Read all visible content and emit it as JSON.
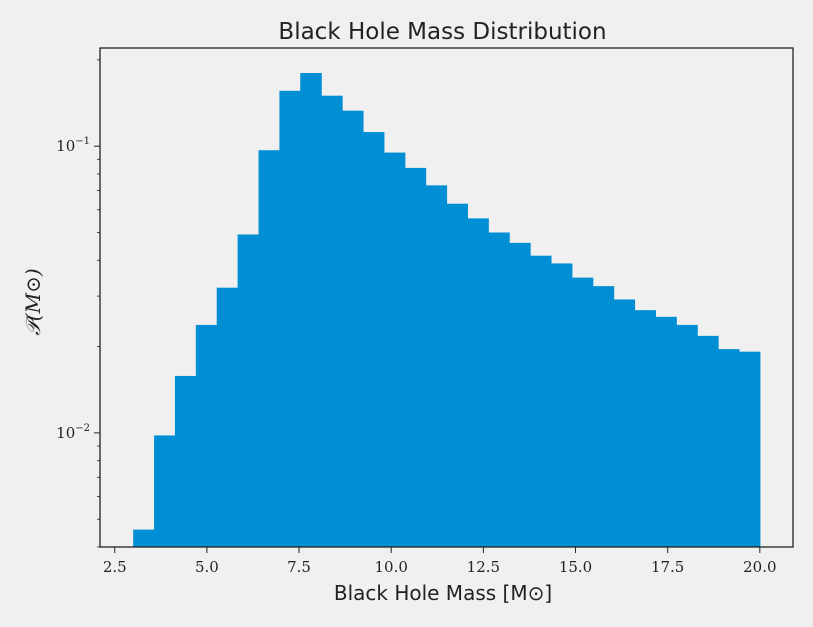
{
  "chart_data": {
    "type": "bar",
    "title": "Black Hole Mass Distribution",
    "xlabel": "Black Hole Mass [M⊙]",
    "ylabel": "𝒫(M⊙)",
    "xlim": [
      2.1,
      20.9
    ],
    "ylim": [
      0.004,
      0.22
    ],
    "yscale": "log",
    "grid": false,
    "legend": "none",
    "bar_color": "#008fd5",
    "x_ticks": [
      2.5,
      5.0,
      7.5,
      10.0,
      12.5,
      15.0,
      17.5,
      20.0
    ],
    "x_tick_labels": [
      "2.5",
      "5.0",
      "7.5",
      "10.0",
      "12.5",
      "15.0",
      "17.5",
      "20.0"
    ],
    "y_ticks": [
      {
        "value": 0.01,
        "base": "10",
        "exponent": "−2"
      },
      {
        "value": 0.1,
        "base": "10",
        "exponent": "−1"
      }
    ],
    "bin_edges": [
      3.0,
      3.567,
      4.133,
      4.7,
      5.267,
      5.833,
      6.4,
      6.967,
      7.533,
      8.1,
      8.667,
      9.233,
      9.8,
      10.367,
      10.933,
      11.5,
      12.067,
      12.633,
      13.2,
      13.767,
      14.333,
      14.9,
      15.467,
      16.033,
      16.6,
      17.167,
      17.733,
      18.3,
      18.867,
      19.433,
      20.0
    ],
    "values": [
      0.0046,
      0.0098,
      0.0158,
      0.0238,
      0.0321,
      0.0492,
      0.0968,
      0.156,
      0.18,
      0.15,
      0.133,
      0.112,
      0.095,
      0.084,
      0.073,
      0.063,
      0.056,
      0.05,
      0.046,
      0.0415,
      0.039,
      0.0348,
      0.0325,
      0.0292,
      0.0268,
      0.0254,
      0.0238,
      0.0218,
      0.0196,
      0.0192
    ]
  }
}
